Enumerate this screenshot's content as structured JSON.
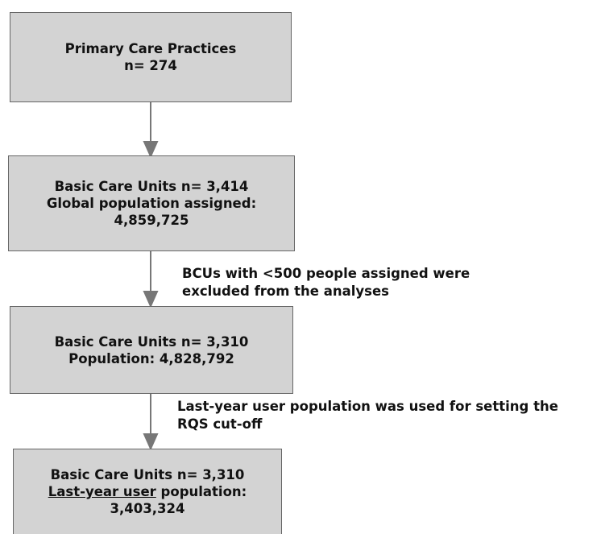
{
  "nodes": [
    {
      "lines": [
        "Primary Care Practices",
        "n= 274"
      ]
    },
    {
      "lines": [
        "Basic Care Units n= 3,414",
        "Global population assigned:",
        "4,859,725"
      ]
    },
    {
      "lines": [
        "Basic Care Units n= 3,310",
        "Population: 4,828,792"
      ]
    },
    {
      "lines": [
        "Basic Care Units n= 3,310",
        [
          "Last-year user",
          "population:"
        ],
        "3,403,324"
      ]
    }
  ],
  "notes": [
    {
      "lines": [
        "BCUs with <500 people assigned were",
        "excluded from the analyses"
      ]
    },
    {
      "lines": [
        "Last-year user population was used for setting the",
        "RQS cut-off"
      ]
    }
  ]
}
